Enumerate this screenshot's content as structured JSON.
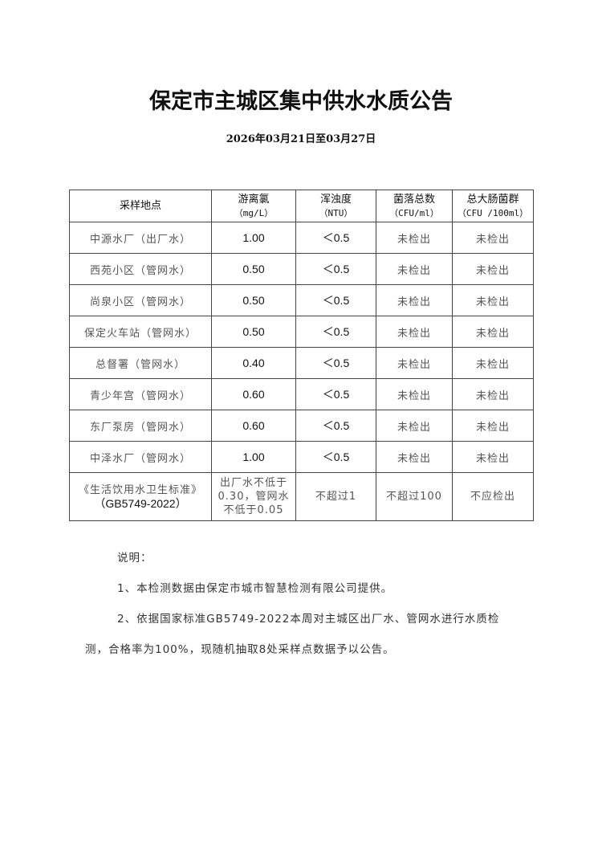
{
  "title": "保定市主城区集中供水水质公告",
  "date": "2026年03月21日至03月27日",
  "table": {
    "headers": [
      {
        "name": "采样地点",
        "unit": ""
      },
      {
        "name": "游离氯",
        "unit": "（mg/L）"
      },
      {
        "name": "浑浊度",
        "unit": "（NTU）"
      },
      {
        "name": "菌落总数",
        "unit": "（CFU/ml）"
      },
      {
        "name": "总大肠菌群",
        "unit": "（CFU /100ml）"
      }
    ],
    "rows": [
      [
        "中源水厂（出厂水）",
        "1.00",
        "＜0.5",
        "未检出",
        "未检出"
      ],
      [
        "西苑小区（管网水）",
        "0.50",
        "＜0.5",
        "未检出",
        "未检出"
      ],
      [
        "尚泉小区（管网水）",
        "0.50",
        "＜0.5",
        "未检出",
        "未检出"
      ],
      [
        "保定火车站（管网水）",
        "0.50",
        "＜0.5",
        "未检出",
        "未检出"
      ],
      [
        "总督署（管网水）",
        "0.40",
        "＜0.5",
        "未检出",
        "未检出"
      ],
      [
        "青少年宫（管网水）",
        "0.60",
        "＜0.5",
        "未检出",
        "未检出"
      ],
      [
        "东厂泵房（管网水）",
        "0.60",
        "＜0.5",
        "未检出",
        "未检出"
      ],
      [
        "中泽水厂（管网水）",
        "1.00",
        "＜0.5",
        "未检出",
        "未检出"
      ]
    ],
    "standard": {
      "name_line1": "《生活饮用水卫生标准》",
      "name_line2": "（GB5749-2022）",
      "chlorine": "出厂水不低于0.30，管网水不低于0.05",
      "turbidity": "不超过1",
      "colony": "不超过100",
      "coliform": "不应检出"
    }
  },
  "notes": {
    "heading": "说明：",
    "item1": "1、本检测数据由保定市城市智慧检测有限公司提供。",
    "item2_line1": "2、依据国家标准GB5749-2022本周对主城区出厂水、管网水进行水质检",
    "item2_line2": "测，合格率为100%，现随机抽取8处采样点数据予以公告。"
  }
}
